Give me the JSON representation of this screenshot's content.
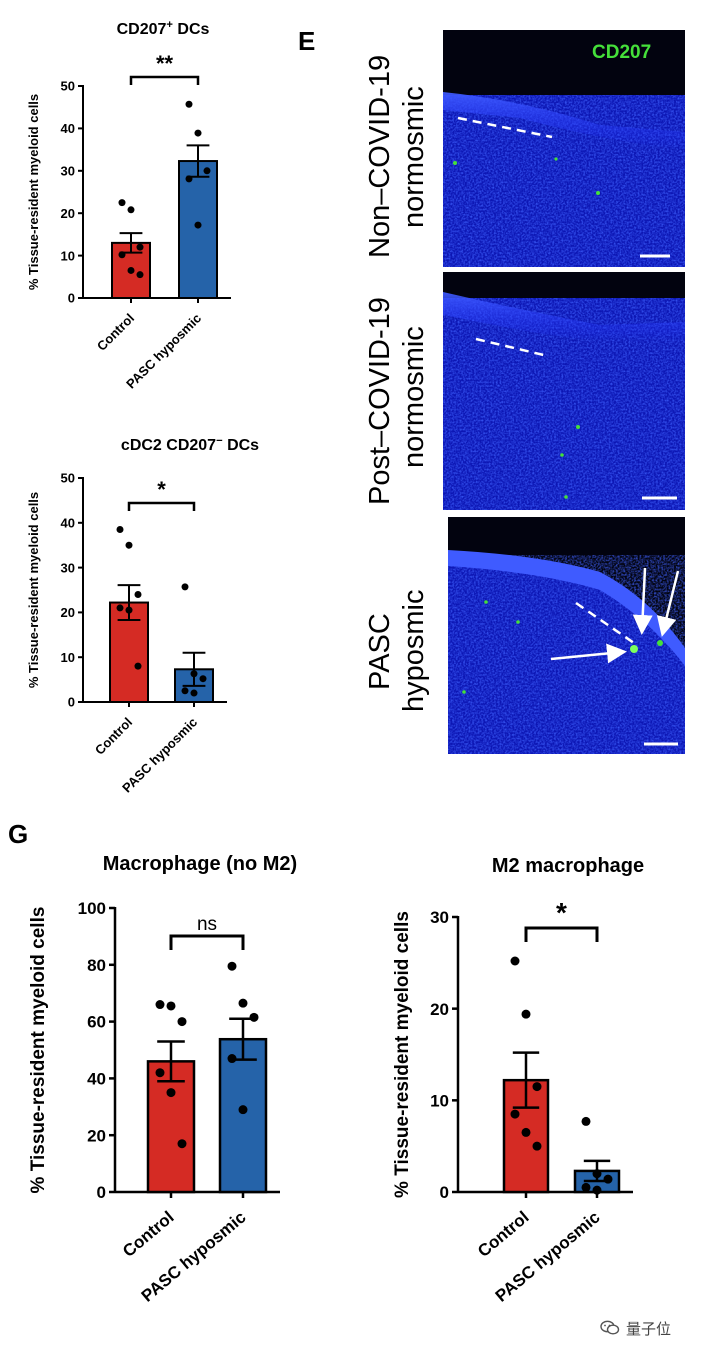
{
  "panel_labels": {
    "E": "E",
    "G": "G"
  },
  "colors": {
    "control": "#d52b24",
    "pasc": "#2563a9",
    "cd207": "#45e03a",
    "nuclei": "#1f2fff"
  },
  "chart_data": [
    {
      "id": "cd207-dcs",
      "type": "bar",
      "title_main": "CD207",
      "title_sup": "+",
      "title_rest": " DCs",
      "ylabel": "% Tissue-resident myeloid cells",
      "xlabel": "",
      "categories": [
        "Control",
        "PASC hyposmic"
      ],
      "values": [
        13,
        32.3
      ],
      "sem": [
        2.3,
        3.7
      ],
      "points": [
        [
          22.5,
          20.8,
          12,
          10.2,
          6.5,
          5.5
        ],
        [
          45.7,
          38.9,
          30,
          28.1,
          17.2
        ]
      ],
      "ylim": [
        0,
        50
      ],
      "yticks": [
        0,
        10,
        20,
        30,
        40,
        50
      ],
      "significance": "**"
    },
    {
      "id": "cdc2-dcs",
      "type": "bar",
      "title_main": "cDC2 CD207",
      "title_sup": "−",
      "title_rest": " DCs",
      "ylabel": "% Tissue-resident myeloid cells",
      "xlabel": "",
      "categories": [
        "Control",
        "PASC hyposmic"
      ],
      "values": [
        22.2,
        7.3
      ],
      "sem": [
        3.9,
        3.7
      ],
      "points": [
        [
          38.5,
          35,
          24,
          21,
          20.5,
          8
        ],
        [
          25.7,
          6.3,
          5.2,
          2.5,
          2
        ]
      ],
      "ylim": [
        0,
        50
      ],
      "yticks": [
        0,
        10,
        20,
        30,
        40,
        50
      ],
      "significance": "*"
    },
    {
      "id": "macrophage-no-m2",
      "type": "bar",
      "title_main": "Macrophage (no M2)",
      "title_sup": "",
      "title_rest": "",
      "ylabel": "% Tissue-resident myeloid cells",
      "xlabel": "",
      "categories": [
        "Control",
        "PASC hyposmic"
      ],
      "values": [
        46,
        53.8
      ],
      "sem": [
        7,
        7.2
      ],
      "points": [
        [
          66,
          65.5,
          60,
          42,
          35,
          17
        ],
        [
          79.5,
          66.5,
          61.5,
          47,
          29
        ]
      ],
      "ylim": [
        0,
        100
      ],
      "yticks": [
        0,
        20,
        40,
        60,
        80,
        100
      ],
      "significance": "ns"
    },
    {
      "id": "m2-macrophage",
      "type": "bar",
      "title_main": "M2 macrophage",
      "title_sup": "",
      "title_rest": "",
      "ylabel": "% Tissue-resident myeloid cells",
      "xlabel": "",
      "categories": [
        "Control",
        "PASC hyposmic"
      ],
      "values": [
        12.2,
        2.3
      ],
      "sem": [
        3,
        1.1
      ],
      "points": [
        [
          25.2,
          19.4,
          11.5,
          8.5,
          6.5,
          5
        ],
        [
          7.7,
          2,
          1.4,
          0.5,
          0.2
        ]
      ],
      "ylim": [
        0,
        30
      ],
      "yticks": [
        0,
        10,
        20,
        30
      ],
      "significance": "*"
    }
  ],
  "microscopy": {
    "stain_label": "CD207",
    "panels": [
      {
        "label_lines": [
          "Non–COVID-19",
          "normosmic"
        ]
      },
      {
        "label_lines": [
          "Post–COVID-19",
          "normosmic"
        ]
      },
      {
        "label_lines": [
          "PASC",
          "hyposmic"
        ]
      }
    ]
  },
  "watermark": {
    "text": "量子位",
    "icon": "wechat-bubble-icon"
  }
}
